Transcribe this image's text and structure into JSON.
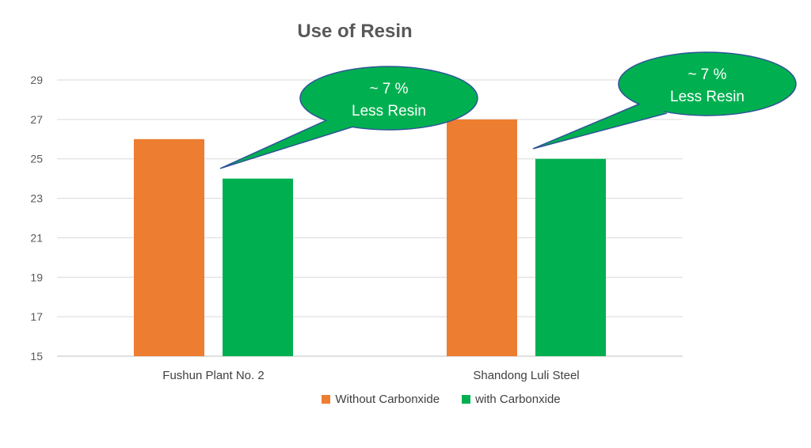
{
  "chart_data": {
    "type": "bar",
    "title": "Use of Resin",
    "categories": [
      "Fushun Plant No. 2",
      "Shandong Luli Steel"
    ],
    "series": [
      {
        "name": "Without Carbonxide",
        "values": [
          26,
          27
        ],
        "color": "#ED7D31"
      },
      {
        "name": "with Carbonxide",
        "values": [
          24,
          25
        ],
        "color": "#00B050"
      }
    ],
    "ylim": [
      15,
      29
    ],
    "yticks": [
      15,
      17,
      19,
      21,
      23,
      25,
      27,
      29
    ],
    "grid": true,
    "legend_position": "bottom",
    "annotations": [
      {
        "line1": "~ 7 %",
        "line2": "Less Resin",
        "category": "Fushun Plant No. 2"
      },
      {
        "line1": "~ 7 %",
        "line2": "Less Resin",
        "category": "Shandong Luli Steel"
      }
    ],
    "callout_color": "#00B050"
  }
}
